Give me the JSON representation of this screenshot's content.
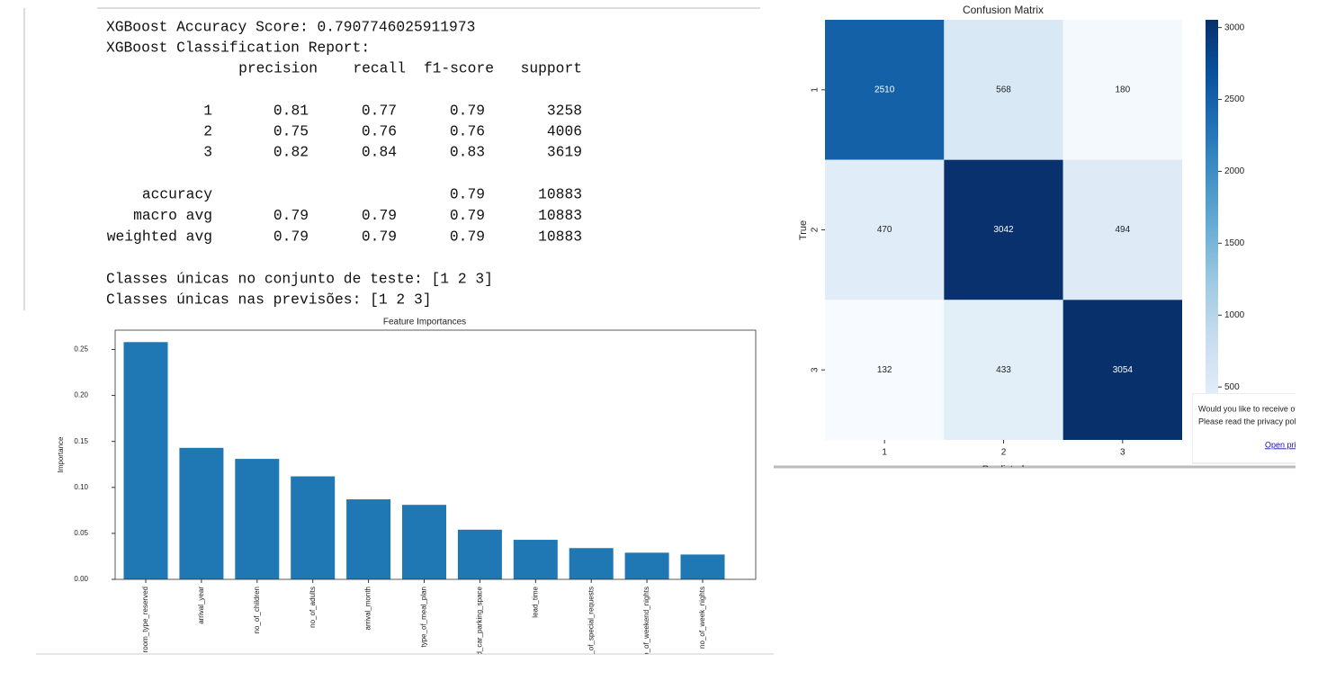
{
  "report": {
    "accuracy_line": "XGBoost Accuracy Score: 0.7907746025911973",
    "report_title": "XGBoost Classification Report:",
    "columns": [
      "precision",
      "recall",
      "f1-score",
      "support"
    ],
    "rows": [
      [
        "1",
        "0.81",
        "0.77",
        "0.79",
        "3258"
      ],
      [
        "2",
        "0.75",
        "0.76",
        "0.76",
        "4006"
      ],
      [
        "3",
        "0.82",
        "0.84",
        "0.83",
        "3619"
      ],
      [
        "accuracy",
        null,
        null,
        "0.79",
        "10883"
      ],
      [
        "macro avg",
        "0.79",
        "0.79",
        "0.79",
        "10883"
      ],
      [
        "weighted avg",
        "0.79",
        "0.79",
        "0.79",
        "10883"
      ]
    ],
    "unique_test": "Classes únicas no conjunto de teste: [1 2 3]",
    "unique_pred": "Classes únicas nas previsões: [1 2 3]"
  },
  "chart_data": [
    {
      "type": "bar",
      "title": "Feature Importances",
      "y_label": "Importance",
      "color": "#1f77b4",
      "categories": [
        "room_type_reserved",
        "arrival_year",
        "no_of_children",
        "no_of_adults",
        "arrival_month",
        "type_of_meal_plan",
        "required_car_parking_space",
        "lead_time",
        "no_of_special_requests",
        "no_of_weekend_nights",
        "no_of_week_nights"
      ],
      "values": [
        0.258,
        0.143,
        0.131,
        0.112,
        0.087,
        0.081,
        0.054,
        0.043,
        0.034,
        0.029,
        0.027
      ],
      "ylim": [
        0,
        0.271
      ],
      "yticks": [
        {
          "value": 0,
          "label": "0.00"
        },
        0.05,
        {
          "value": 0.1,
          "label": "0.10"
        },
        0.15,
        {
          "value": 0.2,
          "label": "0.20"
        },
        0.25
      ]
    },
    {
      "type": "heatmap",
      "title": "Confusion Matrix",
      "x_label": "Predicted",
      "y_label": "True",
      "x_categories": [
        "1",
        "2",
        "3"
      ],
      "y_categories": [
        "1",
        "2",
        "3"
      ],
      "matrix": [
        [
          2510,
          568,
          180
        ],
        [
          470,
          3042,
          494
        ],
        [
          132,
          433,
          3054
        ]
      ],
      "colors": [
        "#f7fbff",
        "#deebf7",
        "#c6dbef",
        "#9ecae1",
        "#6baed6",
        "#4292c6",
        "#2171b5",
        "#08519c",
        "#08306b"
      ],
      "ylim": [
        132,
        3054
      ],
      "yticks": [
        500,
        1000,
        1500,
        2000,
        2500,
        3000
      ]
    }
  ],
  "popup": {
    "line1": "Would you like to receive offi",
    "line2": "Please read the privacy policy",
    "link": "Open priv"
  }
}
